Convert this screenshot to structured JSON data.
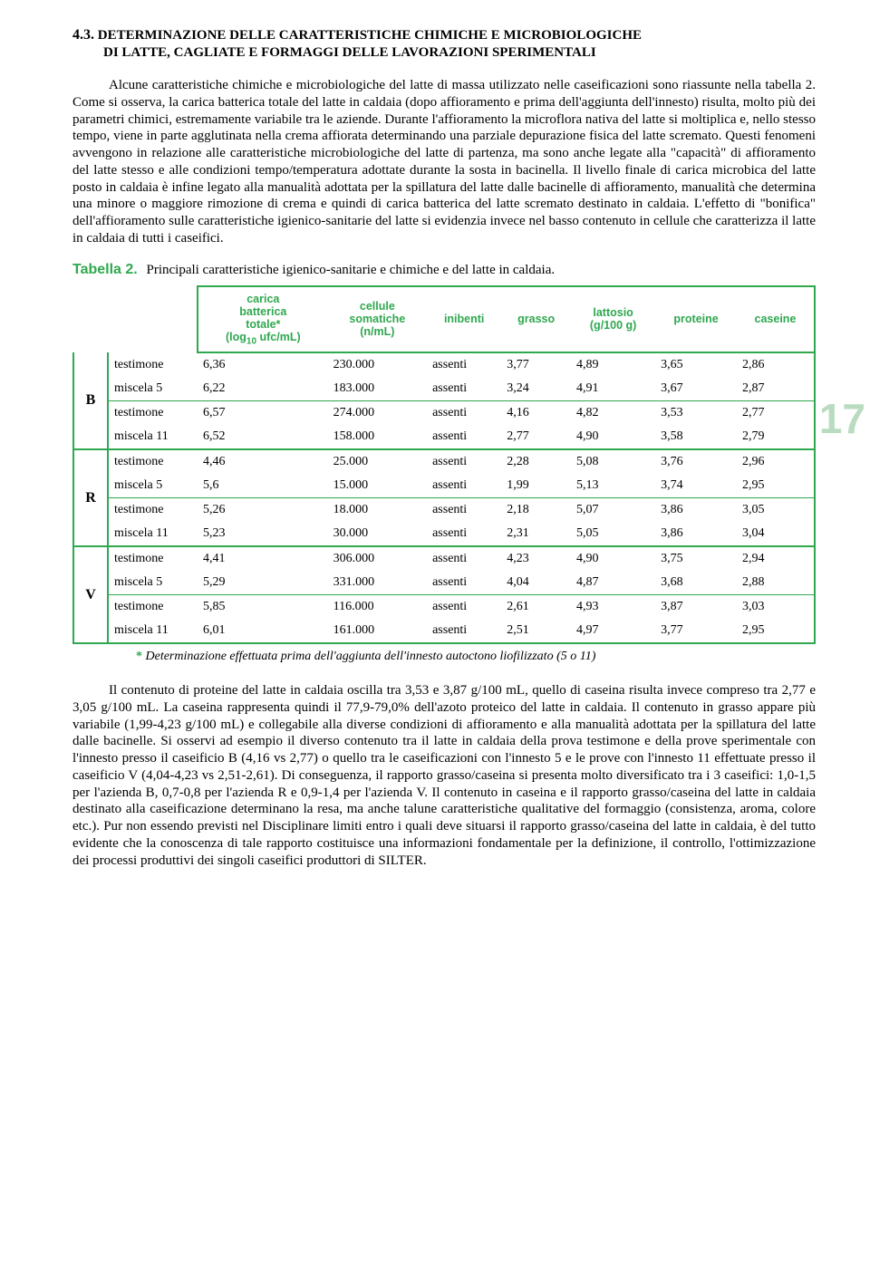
{
  "section": {
    "number": "4.3.",
    "title_line1": "DETERMINAZIONE DELLE CARATTERISTICHE CHIMICHE E MICROBIOLOGICHE",
    "title_line2": "DI LATTE, CAGLIATE E FORMAGGI DELLE LAVORAZIONI SPERIMENTALI"
  },
  "para1": "Alcune caratteristiche chimiche e microbiologiche del latte di massa utilizzato nelle caseificazioni sono riassunte nella tabella 2. Come si osserva, la carica batterica totale del latte in caldaia (dopo affioramento e prima dell'aggiunta dell'innesto) risulta, molto più dei parametri chimici, estremamente variabile tra le aziende. Durante l'affioramento la microflora nativa del latte si moltiplica e, nello stesso tempo, viene in parte agglutinata nella crema affiorata determinando una parziale depurazione fisica del latte scremato. Questi fenomeni avvengono in relazione alle caratteristiche microbiologiche del latte di partenza, ma sono anche legate alla \"capacità\" di affioramento del latte stesso e alle condizioni tempo/temperatura adottate durante la sosta in bacinella. Il livello finale di carica microbica del latte posto in caldaia è infine legato alla manualità adottata per la spillatura del latte dalle bacinelle di affioramento, manualità che determina una minore o maggiore rimozione di crema e quindi di carica batterica del latte scremato destinato in caldaia. L'effetto di \"bonifica\" dell'affioramento sulle caratteristiche igienico-sanitarie del latte si evidenzia invece nel basso contenuto in cellule che caratterizza il latte in caldaia di tutti i caseifici.",
  "tabella": {
    "label": "Tabella 2.",
    "caption": "Principali caratteristiche igienico-sanitarie e chimiche e del latte in caldaia.",
    "headers": {
      "c1_l1": "carica",
      "c1_l2": "batterica",
      "c1_l3": "totale*",
      "c1_l4_a": "(log",
      "c1_l4_b": "10",
      "c1_l4_c": " ufc/mL)",
      "c2_l1": "cellule",
      "c2_l2": "somatiche",
      "c2_l3": "(n/mL)",
      "c3": "inibenti",
      "c4": "grasso",
      "c5": "lattosio",
      "c6": "proteine",
      "c7": "caseine",
      "unit": "(g/100 g)"
    },
    "groups": [
      {
        "label": "B",
        "rows": [
          {
            "name": "testimone",
            "cb": "6,36",
            "cs": "230.000",
            "in": "assenti",
            "g": "3,77",
            "l": "4,89",
            "p": "3,65",
            "c": "2,86"
          },
          {
            "name": "miscela 5",
            "cb": "6,22",
            "cs": "183.000",
            "in": "assenti",
            "g": "3,24",
            "l": "4,91",
            "p": "3,67",
            "c": "2,87"
          },
          {
            "name": "testimone",
            "cb": "6,57",
            "cs": "274.000",
            "in": "assenti",
            "g": "4,16",
            "l": "4,82",
            "p": "3,53",
            "c": "2,77"
          },
          {
            "name": "miscela 11",
            "cb": "6,52",
            "cs": "158.000",
            "in": "assenti",
            "g": "2,77",
            "l": "4,90",
            "p": "3,58",
            "c": "2,79"
          }
        ]
      },
      {
        "label": "R",
        "rows": [
          {
            "name": "testimone",
            "cb": "4,46",
            "cs": "25.000",
            "in": "assenti",
            "g": "2,28",
            "l": "5,08",
            "p": "3,76",
            "c": "2,96"
          },
          {
            "name": "miscela 5",
            "cb": "5,6",
            "cs": "15.000",
            "in": "assenti",
            "g": "1,99",
            "l": "5,13",
            "p": "3,74",
            "c": "2,95"
          },
          {
            "name": "testimone",
            "cb": "5,26",
            "cs": "18.000",
            "in": "assenti",
            "g": "2,18",
            "l": "5,07",
            "p": "3,86",
            "c": "3,05"
          },
          {
            "name": "miscela 11",
            "cb": "5,23",
            "cs": "30.000",
            "in": "assenti",
            "g": "2,31",
            "l": "5,05",
            "p": "3,86",
            "c": "3,04"
          }
        ]
      },
      {
        "label": "V",
        "rows": [
          {
            "name": "testimone",
            "cb": "4,41",
            "cs": "306.000",
            "in": "assenti",
            "g": "4,23",
            "l": "4,90",
            "p": "3,75",
            "c": "2,94"
          },
          {
            "name": "miscela 5",
            "cb": "5,29",
            "cs": "331.000",
            "in": "assenti",
            "g": "4,04",
            "l": "4,87",
            "p": "3,68",
            "c": "2,88"
          },
          {
            "name": "testimone",
            "cb": "5,85",
            "cs": "116.000",
            "in": "assenti",
            "g": "2,61",
            "l": "4,93",
            "p": "3,87",
            "c": "3,03"
          },
          {
            "name": "miscela 11",
            "cb": "6,01",
            "cs": "161.000",
            "in": "assenti",
            "g": "2,51",
            "l": "4,97",
            "p": "3,77",
            "c": "2,95"
          }
        ]
      }
    ],
    "footnote_star": "*",
    "footnote": " Determinazione effettuata prima dell'aggiunta dell'innesto autoctono liofilizzato (5 o 11)"
  },
  "page_number": "17",
  "para2_a": "Il contenuto di proteine del latte in caldaia oscilla tra 3,53 e 3,87 g/100 mL, quello di caseina risulta invece compreso tra 2,77 e 3,05 g/100 mL. La caseina rappresenta quindi il 77,9-79,0% dell'azoto proteico del latte in caldaia. Il contenuto in grasso appare più variabile (1,99-4,23 g/100 mL) e collegabile alla diverse condizioni di affioramento e alla manualità adottata per la spillatura del latte dalle bacinelle. Si osservi ad esempio il diverso contenuto tra il latte in caldaia della prova testimone e della prove sperimentale con l'innesto presso il caseificio B (4,16 vs 2,77) o quello tra le caseificazioni con l'innesto 5 e le prove con l'innesto 11 effettuate presso il caseificio V (4,04-4,23 vs 2,51-2,61). Di conseguenza, il rapporto grasso/caseina si presenta molto diversificato tra i 3 caseifici: 1,0-1,5 per l'azienda B, 0,7-0,8 per l'azienda R e 0,9-1,4 per l'azienda V. Il contenuto in caseina e il rapporto grasso/caseina del latte in caldaia destinato alla caseificazione determinano la resa, ma anche talune caratteristiche qualitative del formaggio (consistenza, aroma, colore etc.). Pur non essendo previsti nel Disciplinare limiti entro i quali deve situarsi il rapporto grasso/caseina del latte in caldaia, è del tutto evidente che la conoscenza di tale rapporto costituisce una informazioni fondamentale per la definizione, il controllo, l'ottimizzazione dei processi produttivi dei singoli caseifici produttori di S",
  "para2_b": "ILTER."
}
